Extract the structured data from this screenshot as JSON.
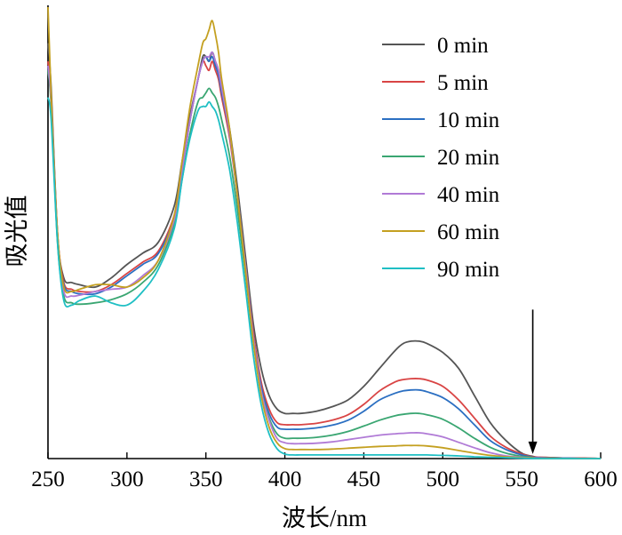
{
  "chart_data": {
    "type": "line",
    "title": "",
    "xlabel": "波长/nm",
    "ylabel": "吸光值",
    "xlim": [
      250,
      600
    ],
    "ylim": [
      0,
      1.0
    ],
    "x_ticks": [
      "250",
      "300",
      "350",
      "400",
      "450",
      "500",
      "550",
      "600"
    ],
    "legend_position": "top-right",
    "y_tick_labels_shown": false,
    "arrow_annotation": {
      "x": 557,
      "direction": "down",
      "y_start": 0.33,
      "y_end": 0.01
    },
    "series": [
      {
        "name": "0 min",
        "color": "#555555",
        "x": [
          250,
          252,
          256,
          260,
          265,
          270,
          280,
          290,
          300,
          310,
          320,
          330,
          335,
          340,
          345,
          348,
          350,
          352,
          354,
          356,
          358,
          360,
          365,
          370,
          375,
          380,
          385,
          390,
          395,
          400,
          405,
          410,
          420,
          430,
          440,
          450,
          460,
          470,
          475,
          480,
          485,
          490,
          500,
          510,
          520,
          530,
          540,
          550,
          557,
          560,
          570,
          580,
          590,
          600
        ],
        "y": [
          0.92,
          0.82,
          0.5,
          0.4,
          0.39,
          0.385,
          0.38,
          0.4,
          0.43,
          0.455,
          0.48,
          0.56,
          0.66,
          0.76,
          0.84,
          0.89,
          0.89,
          0.88,
          0.9,
          0.88,
          0.86,
          0.82,
          0.73,
          0.6,
          0.45,
          0.3,
          0.2,
          0.14,
          0.11,
          0.1,
          0.1,
          0.1,
          0.105,
          0.115,
          0.13,
          0.16,
          0.2,
          0.24,
          0.255,
          0.26,
          0.26,
          0.255,
          0.235,
          0.2,
          0.14,
          0.08,
          0.04,
          0.012,
          0.005,
          0.003,
          0.002,
          0.001,
          0.001,
          0.0
        ]
      },
      {
        "name": "5 min",
        "color": "#d94444",
        "x": [
          250,
          252,
          256,
          260,
          265,
          270,
          280,
          290,
          300,
          310,
          320,
          330,
          335,
          340,
          345,
          348,
          350,
          352,
          354,
          356,
          358,
          360,
          365,
          370,
          375,
          380,
          385,
          390,
          395,
          400,
          405,
          410,
          420,
          430,
          440,
          450,
          460,
          470,
          475,
          480,
          485,
          490,
          500,
          510,
          520,
          530,
          540,
          550,
          557,
          560,
          570,
          580,
          590,
          600
        ],
        "y": [
          0.88,
          0.8,
          0.5,
          0.39,
          0.375,
          0.37,
          0.37,
          0.385,
          0.41,
          0.435,
          0.46,
          0.54,
          0.64,
          0.75,
          0.84,
          0.88,
          0.87,
          0.86,
          0.88,
          0.86,
          0.84,
          0.8,
          0.71,
          0.58,
          0.43,
          0.28,
          0.17,
          0.11,
          0.08,
          0.075,
          0.075,
          0.075,
          0.078,
          0.085,
          0.097,
          0.12,
          0.15,
          0.17,
          0.175,
          0.177,
          0.177,
          0.174,
          0.16,
          0.13,
          0.09,
          0.05,
          0.025,
          0.01,
          0.004,
          0.003,
          0.002,
          0.001,
          0.001,
          0.0
        ]
      },
      {
        "name": "10 min",
        "color": "#2b6fc2",
        "x": [
          250,
          252,
          256,
          260,
          265,
          270,
          280,
          290,
          300,
          310,
          320,
          330,
          335,
          340,
          345,
          348,
          350,
          352,
          354,
          356,
          358,
          360,
          365,
          370,
          375,
          380,
          385,
          390,
          395,
          400,
          405,
          410,
          420,
          430,
          440,
          450,
          460,
          470,
          475,
          480,
          485,
          490,
          500,
          510,
          520,
          530,
          540,
          550,
          557,
          560,
          570,
          580,
          590,
          600
        ],
        "y": [
          0.87,
          0.79,
          0.49,
          0.385,
          0.37,
          0.365,
          0.365,
          0.38,
          0.405,
          0.43,
          0.455,
          0.535,
          0.64,
          0.75,
          0.84,
          0.88,
          0.89,
          0.88,
          0.89,
          0.87,
          0.85,
          0.81,
          0.72,
          0.58,
          0.43,
          0.27,
          0.16,
          0.1,
          0.07,
          0.065,
          0.065,
          0.065,
          0.068,
          0.074,
          0.085,
          0.105,
          0.13,
          0.145,
          0.15,
          0.152,
          0.152,
          0.148,
          0.135,
          0.11,
          0.075,
          0.04,
          0.02,
          0.008,
          0.003,
          0.002,
          0.001,
          0.001,
          0.0,
          0.0
        ]
      },
      {
        "name": "20 min",
        "color": "#3aa672",
        "x": [
          250,
          252,
          256,
          260,
          265,
          270,
          280,
          290,
          300,
          310,
          320,
          330,
          335,
          340,
          345,
          348,
          350,
          352,
          354,
          356,
          358,
          360,
          365,
          370,
          375,
          380,
          385,
          390,
          395,
          400,
          405,
          410,
          420,
          430,
          440,
          450,
          460,
          470,
          475,
          480,
          485,
          490,
          500,
          510,
          520,
          530,
          540,
          550,
          557,
          560,
          570,
          580,
          590,
          600
        ],
        "y": [
          0.86,
          0.78,
          0.48,
          0.36,
          0.345,
          0.342,
          0.345,
          0.352,
          0.365,
          0.39,
          0.43,
          0.52,
          0.62,
          0.72,
          0.79,
          0.8,
          0.81,
          0.82,
          0.81,
          0.8,
          0.78,
          0.75,
          0.67,
          0.55,
          0.41,
          0.26,
          0.15,
          0.09,
          0.055,
          0.045,
          0.045,
          0.045,
          0.047,
          0.052,
          0.06,
          0.072,
          0.085,
          0.095,
          0.098,
          0.1,
          0.1,
          0.097,
          0.087,
          0.068,
          0.045,
          0.025,
          0.012,
          0.005,
          0.002,
          0.001,
          0.001,
          0.0,
          0.0,
          0.0
        ]
      },
      {
        "name": "40 min",
        "color": "#b07ad6",
        "x": [
          250,
          252,
          256,
          260,
          265,
          270,
          280,
          290,
          300,
          310,
          320,
          330,
          335,
          340,
          345,
          348,
          350,
          352,
          354,
          356,
          358,
          360,
          365,
          370,
          375,
          380,
          385,
          390,
          395,
          400,
          405,
          410,
          420,
          430,
          440,
          450,
          460,
          470,
          475,
          480,
          485,
          490,
          500,
          510,
          520,
          530,
          540,
          550,
          557,
          560,
          570,
          580,
          590,
          600
        ],
        "y": [
          0.87,
          0.79,
          0.49,
          0.37,
          0.36,
          0.362,
          0.37,
          0.375,
          0.38,
          0.405,
          0.44,
          0.53,
          0.64,
          0.75,
          0.84,
          0.88,
          0.89,
          0.89,
          0.9,
          0.88,
          0.86,
          0.82,
          0.72,
          0.58,
          0.43,
          0.27,
          0.15,
          0.085,
          0.045,
          0.035,
          0.033,
          0.033,
          0.034,
          0.037,
          0.042,
          0.047,
          0.052,
          0.055,
          0.056,
          0.057,
          0.057,
          0.055,
          0.048,
          0.036,
          0.024,
          0.013,
          0.006,
          0.003,
          0.001,
          0.001,
          0.0,
          0.0,
          0.0,
          0.0
        ]
      },
      {
        "name": "60 min",
        "color": "#c4a020",
        "x": [
          250,
          252,
          256,
          260,
          265,
          270,
          280,
          290,
          300,
          310,
          320,
          330,
          335,
          340,
          345,
          348,
          350,
          352,
          354,
          356,
          358,
          360,
          365,
          370,
          375,
          380,
          385,
          390,
          395,
          400,
          405,
          410,
          420,
          430,
          440,
          450,
          460,
          470,
          475,
          480,
          485,
          490,
          500,
          510,
          520,
          530,
          540,
          550,
          557,
          560,
          570,
          580,
          590,
          600
        ],
        "y": [
          1.0,
          0.8,
          0.5,
          0.38,
          0.37,
          0.375,
          0.385,
          0.385,
          0.38,
          0.4,
          0.44,
          0.54,
          0.66,
          0.78,
          0.87,
          0.92,
          0.93,
          0.95,
          0.97,
          0.94,
          0.9,
          0.84,
          0.73,
          0.58,
          0.42,
          0.26,
          0.14,
          0.07,
          0.035,
          0.022,
          0.02,
          0.02,
          0.02,
          0.021,
          0.023,
          0.025,
          0.027,
          0.028,
          0.029,
          0.029,
          0.029,
          0.028,
          0.024,
          0.018,
          0.012,
          0.007,
          0.004,
          0.002,
          0.001,
          0.0,
          0.0,
          0.0,
          0.0,
          0.0
        ]
      },
      {
        "name": "90 min",
        "color": "#1fbfc4",
        "x": [
          250,
          252,
          256,
          260,
          265,
          270,
          280,
          290,
          300,
          310,
          320,
          330,
          335,
          340,
          345,
          348,
          350,
          352,
          354,
          356,
          358,
          360,
          365,
          370,
          375,
          380,
          385,
          390,
          395,
          400,
          405,
          410,
          420,
          430,
          440,
          450,
          460,
          470,
          475,
          480,
          485,
          490,
          500,
          510,
          520,
          530,
          540,
          550,
          557,
          560,
          570,
          580,
          590,
          600
        ],
        "y": [
          0.8,
          0.75,
          0.48,
          0.35,
          0.34,
          0.35,
          0.36,
          0.345,
          0.34,
          0.37,
          0.42,
          0.51,
          0.62,
          0.71,
          0.77,
          0.78,
          0.78,
          0.79,
          0.78,
          0.77,
          0.75,
          0.72,
          0.64,
          0.52,
          0.38,
          0.23,
          0.12,
          0.055,
          0.022,
          0.01,
          0.008,
          0.008,
          0.008,
          0.008,
          0.008,
          0.008,
          0.008,
          0.008,
          0.008,
          0.008,
          0.008,
          0.008,
          0.007,
          0.006,
          0.004,
          0.003,
          0.002,
          0.001,
          0.0,
          0.0,
          0.0,
          0.0,
          0.0,
          0.0
        ]
      }
    ]
  }
}
